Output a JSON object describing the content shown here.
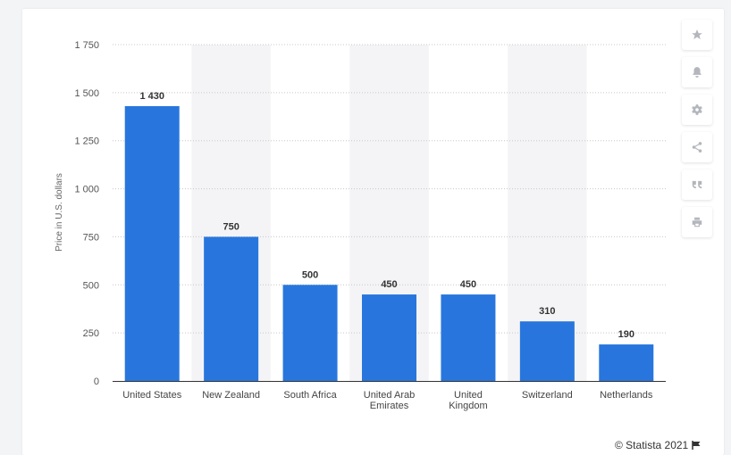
{
  "chart_data": {
    "type": "bar",
    "categories": [
      "United States",
      "New Zealand",
      "South Africa",
      "United Arab Emirates",
      "United Kingdom",
      "Switzerland",
      "Netherlands"
    ],
    "category_lines": [
      [
        "United States"
      ],
      [
        "New Zealand"
      ],
      [
        "South Africa"
      ],
      [
        "United Arab",
        "Emirates"
      ],
      [
        "United",
        "Kingdom"
      ],
      [
        "Switzerland"
      ],
      [
        "Netherlands"
      ]
    ],
    "values": [
      1430,
      750,
      500,
      450,
      450,
      310,
      190
    ],
    "value_labels": [
      "1 430",
      "750",
      "500",
      "450",
      "450",
      "310",
      "190"
    ],
    "ylabel": "Price in U.S. dollars",
    "ylim": [
      0,
      1750
    ],
    "yticks": [
      0,
      250,
      500,
      750,
      1000,
      1250,
      1500,
      1750
    ],
    "ytick_labels": [
      "0",
      "250",
      "500",
      "750",
      "1 000",
      "1 250",
      "1 500",
      "1 750"
    ],
    "grid": true,
    "bar_color": "#2876dd",
    "band_color": "#f4f4f6"
  },
  "credit": {
    "text": "© Statista 2021"
  },
  "toolbar": {
    "icons": [
      "star-icon",
      "bell-icon",
      "gear-icon",
      "share-icon",
      "quote-icon",
      "print-icon"
    ]
  }
}
